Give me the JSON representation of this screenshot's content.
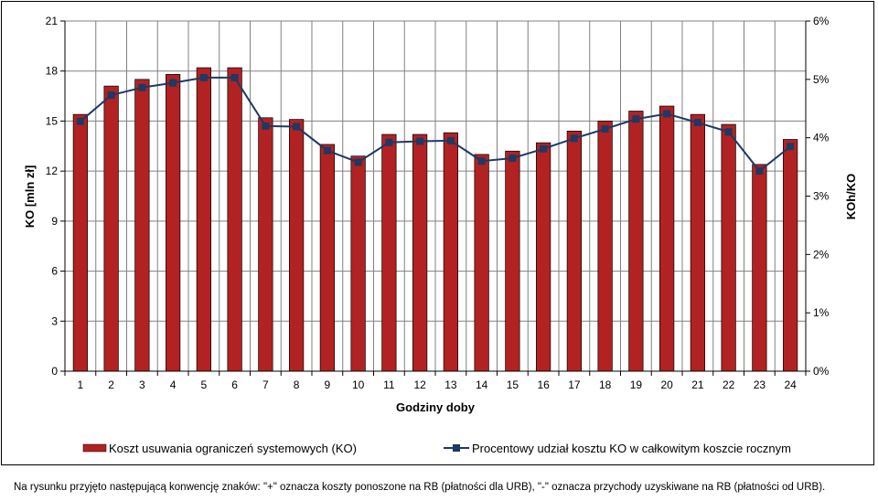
{
  "chart_data": {
    "type": "bar",
    "categories": [
      "1",
      "2",
      "3",
      "4",
      "5",
      "6",
      "7",
      "8",
      "9",
      "10",
      "11",
      "12",
      "13",
      "14",
      "15",
      "16",
      "17",
      "18",
      "19",
      "20",
      "21",
      "22",
      "23",
      "24"
    ],
    "series": [
      {
        "name": "Koszt usuwania ograniczeń systemowych (KO)",
        "type": "bar",
        "axis": "left",
        "color": "#b22222",
        "values": [
          15.4,
          17.1,
          17.5,
          17.8,
          18.2,
          18.2,
          15.2,
          15.1,
          13.6,
          12.9,
          14.2,
          14.2,
          14.3,
          13.0,
          13.2,
          13.7,
          14.4,
          15.0,
          15.6,
          15.9,
          15.4,
          14.8,
          12.4,
          13.9
        ]
      },
      {
        "name": "Procentowy udział kosztu KO w całkowitym koszcie rocznym",
        "type": "line",
        "axis": "right",
        "color": "#1f3864",
        "values": [
          4.28,
          4.73,
          4.86,
          4.94,
          5.03,
          5.03,
          4.2,
          4.19,
          3.78,
          3.58,
          3.92,
          3.94,
          3.95,
          3.6,
          3.65,
          3.81,
          3.99,
          4.15,
          4.32,
          4.41,
          4.26,
          4.1,
          3.43,
          3.85
        ]
      }
    ],
    "xlabel": "Godziny doby",
    "ylabel": "KO [mln zł]",
    "y2label": "KOh/KO",
    "ylim": [
      0,
      21
    ],
    "y2lim": [
      0,
      6
    ],
    "yticks": [
      "0",
      "3",
      "6",
      "9",
      "12",
      "15",
      "18",
      "21"
    ],
    "y2ticks": [
      "0%",
      "1%",
      "2%",
      "3%",
      "4%",
      "5%",
      "6%"
    ],
    "grid": true,
    "legend": "bottom"
  },
  "footnote": "Na rysunku przyjęto następującą konwencję znaków: \"+\" oznacza koszty ponoszone na RB (płatności dla URB), \"-\" oznacza przychody uzyskiwane na RB (płatności od URB)."
}
